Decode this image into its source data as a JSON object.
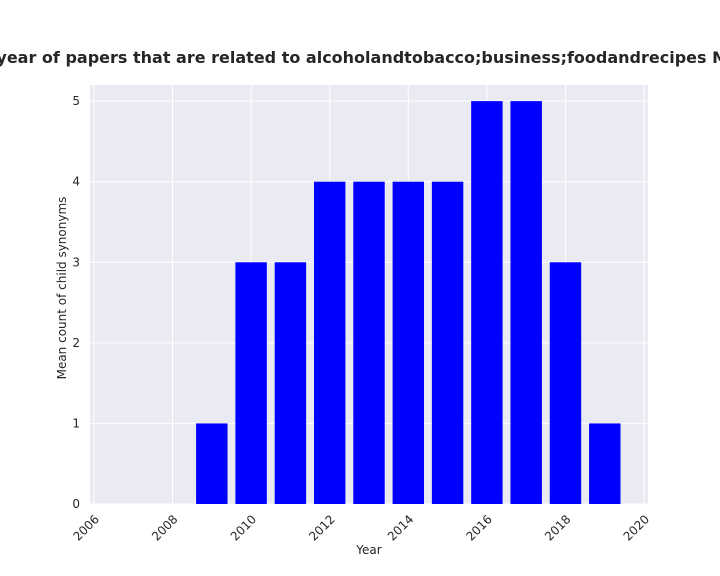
{
  "chart_data": {
    "type": "bar",
    "title": "Mean count of child synonyms per year of papers that are related to alcoholandtobacco;business;foodandrecipes Mean count of child synonyms in pri",
    "xlabel": "Year",
    "ylabel": "Mean count of child synonyms",
    "x": [
      2009,
      2010,
      2011,
      2012,
      2013,
      2014,
      2015,
      2016,
      2017,
      2018,
      2019
    ],
    "values": [
      1,
      3,
      3,
      4,
      4,
      4,
      4,
      5,
      5,
      3,
      1
    ],
    "xlim": [
      2005.9,
      2020.1
    ],
    "ylim": [
      0,
      5.2
    ],
    "xticks": [
      2006,
      2008,
      2010,
      2012,
      2014,
      2016,
      2018,
      2020
    ],
    "yticks": [
      0,
      1,
      2,
      3,
      4,
      5
    ],
    "bar_color": "#0000ff",
    "background": "#eaeaf2",
    "grid_color": "#ffffff",
    "grid": true
  }
}
